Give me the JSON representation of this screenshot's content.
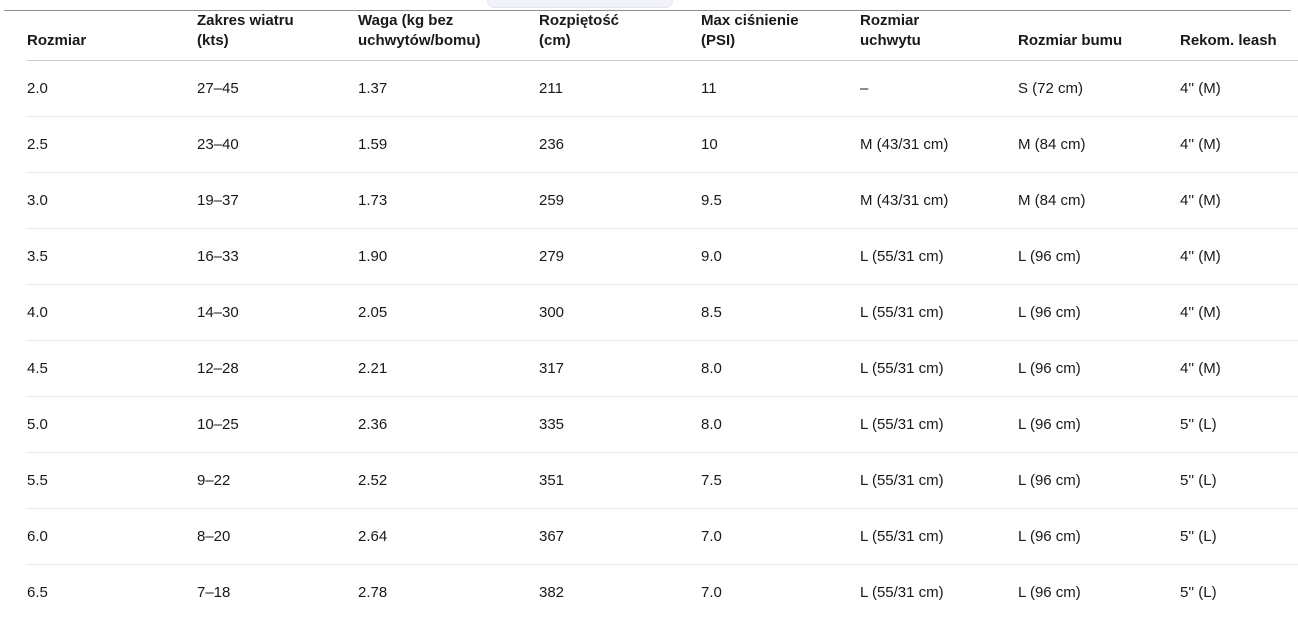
{
  "page": {
    "pill_fragment": {
      "description": "bottom edge of a cut-off rounded pill element at top of viewport"
    }
  },
  "colors": {
    "text": "#191919",
    "top_border": "#8f8f8f",
    "header_divider": "#cdcdcf",
    "row_divider": "#e7e7e9",
    "pill_fill": "#f1f1f9",
    "pill_border": "#e3e3f0",
    "bg": "#ffffff"
  },
  "table": {
    "columns": [
      {
        "id": "rozmiar",
        "label": "Rozmiar"
      },
      {
        "id": "zakres-wiatru",
        "label": "Zakres wiatru\n(kts)"
      },
      {
        "id": "waga",
        "label": "Waga (kg bez\nuchwytów/bomu)"
      },
      {
        "id": "rozpietosc",
        "label": "Rozpiętość\n(cm)"
      },
      {
        "id": "max-cisnienie",
        "label": "Max ciśnienie\n(PSI)"
      },
      {
        "id": "rozmiar-uchwytu",
        "label": "Rozmiar\nuchwytu"
      },
      {
        "id": "rozmiar-bumu",
        "label": "Rozmiar bumu"
      },
      {
        "id": "rekom-leash",
        "label": "Rekom. leash"
      }
    ],
    "rows": [
      [
        "2.0",
        "27–45",
        "1.37",
        "211",
        "11",
        "–",
        "S (72 cm)",
        "4'' (M)"
      ],
      [
        "2.5",
        "23–40",
        "1.59",
        "236",
        "10",
        "M (43/31 cm)",
        "M (84 cm)",
        "4'' (M)"
      ],
      [
        "3.0",
        "19–37",
        "1.73",
        "259",
        "9.5",
        "M (43/31 cm)",
        "M (84 cm)",
        "4'' (M)"
      ],
      [
        "3.5",
        "16–33",
        "1.90",
        "279",
        "9.0",
        "L (55/31 cm)",
        "L (96 cm)",
        "4'' (M)"
      ],
      [
        "4.0",
        "14–30",
        "2.05",
        "300",
        "8.5",
        "L (55/31 cm)",
        "L (96 cm)",
        "4'' (M)"
      ],
      [
        "4.5",
        "12–28",
        "2.21",
        "317",
        "8.0",
        "L (55/31 cm)",
        "L (96 cm)",
        "4'' (M)"
      ],
      [
        "5.0",
        "10–25",
        "2.36",
        "335",
        "8.0",
        "L (55/31 cm)",
        "L (96 cm)",
        "5'' (L)"
      ],
      [
        "5.5",
        "9–22",
        "2.52",
        "351",
        "7.5",
        "L (55/31 cm)",
        "L (96 cm)",
        "5'' (L)"
      ],
      [
        "6.0",
        "8–20",
        "2.64",
        "367",
        "7.0",
        "L (55/31 cm)",
        "L (96 cm)",
        "5'' (L)"
      ],
      [
        "6.5",
        "7–18",
        "2.78",
        "382",
        "7.0",
        "L (55/31 cm)",
        "L (96 cm)",
        "5'' (L)"
      ]
    ]
  }
}
